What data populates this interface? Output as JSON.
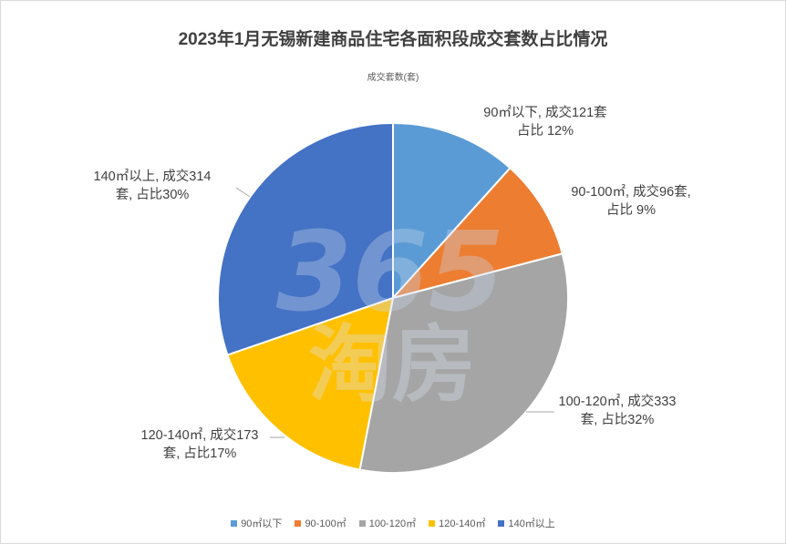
{
  "chart_data": {
    "type": "pie",
    "title": "2023年1月无锡新建商品住宅各面积段成交套数占比情况",
    "subtitle": "成交套数(套)",
    "categories": [
      "90㎡以下",
      "90-100㎡",
      "100-120㎡",
      "120-140㎡",
      "140㎡以上"
    ],
    "values": [
      121,
      96,
      333,
      173,
      314
    ],
    "percent": [
      12,
      9,
      32,
      17,
      30
    ],
    "colors": [
      "#5b9bd5",
      "#ed7d31",
      "#a5a5a5",
      "#ffc000",
      "#4472c4"
    ],
    "data_labels": [
      [
        "90㎡以下, 成交121套",
        "占比 12%"
      ],
      [
        "90-100㎡, 成交96套,",
        "占比 9%"
      ],
      [
        "100-120㎡, 成交333",
        "套, 占比32%"
      ],
      [
        "120-140㎡, 成交173",
        "套, 占比17%"
      ],
      [
        "140㎡以上, 成交314",
        "套, 占比30%"
      ]
    ],
    "legend_position": "bottom",
    "watermark": "365淘房"
  }
}
